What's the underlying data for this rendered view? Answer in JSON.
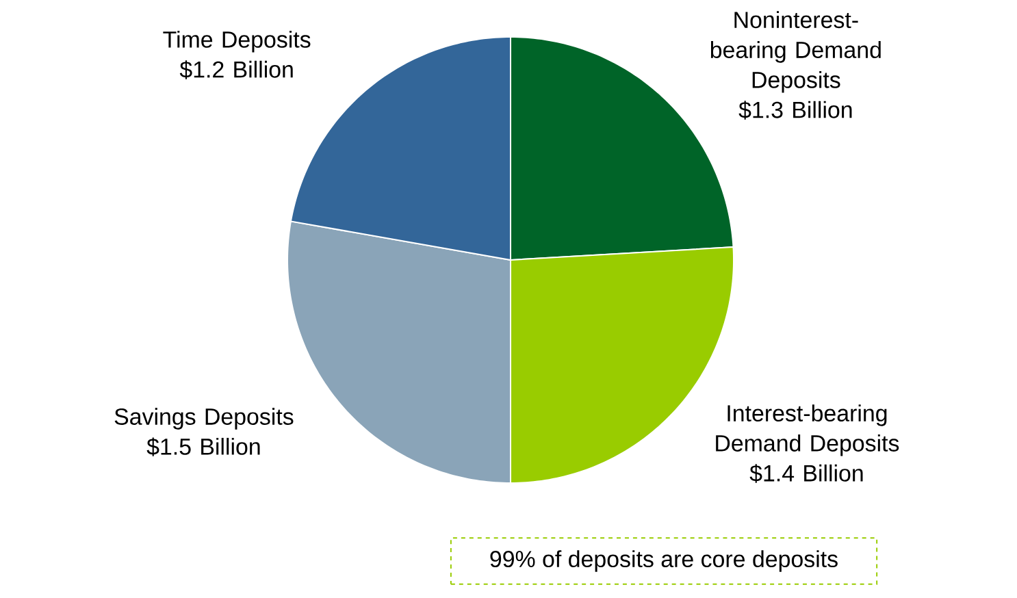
{
  "chart_data": {
    "type": "pie",
    "categories": [
      "Noninterest-bearing Demand Deposits",
      "Interest-bearing Demand Deposits",
      "Savings Deposits",
      "Time Deposits"
    ],
    "values": [
      1.3,
      1.4,
      1.5,
      1.2
    ],
    "value_labels": [
      "$1.3 Billion",
      "$1.4 Billion",
      "$1.5 Billion",
      "$1.2 Billion"
    ],
    "colors": [
      "#006428",
      "#99cc00",
      "#8aa4b8",
      "#336699"
    ],
    "annotations": [
      "99% of deposits are core deposits"
    ]
  }
}
